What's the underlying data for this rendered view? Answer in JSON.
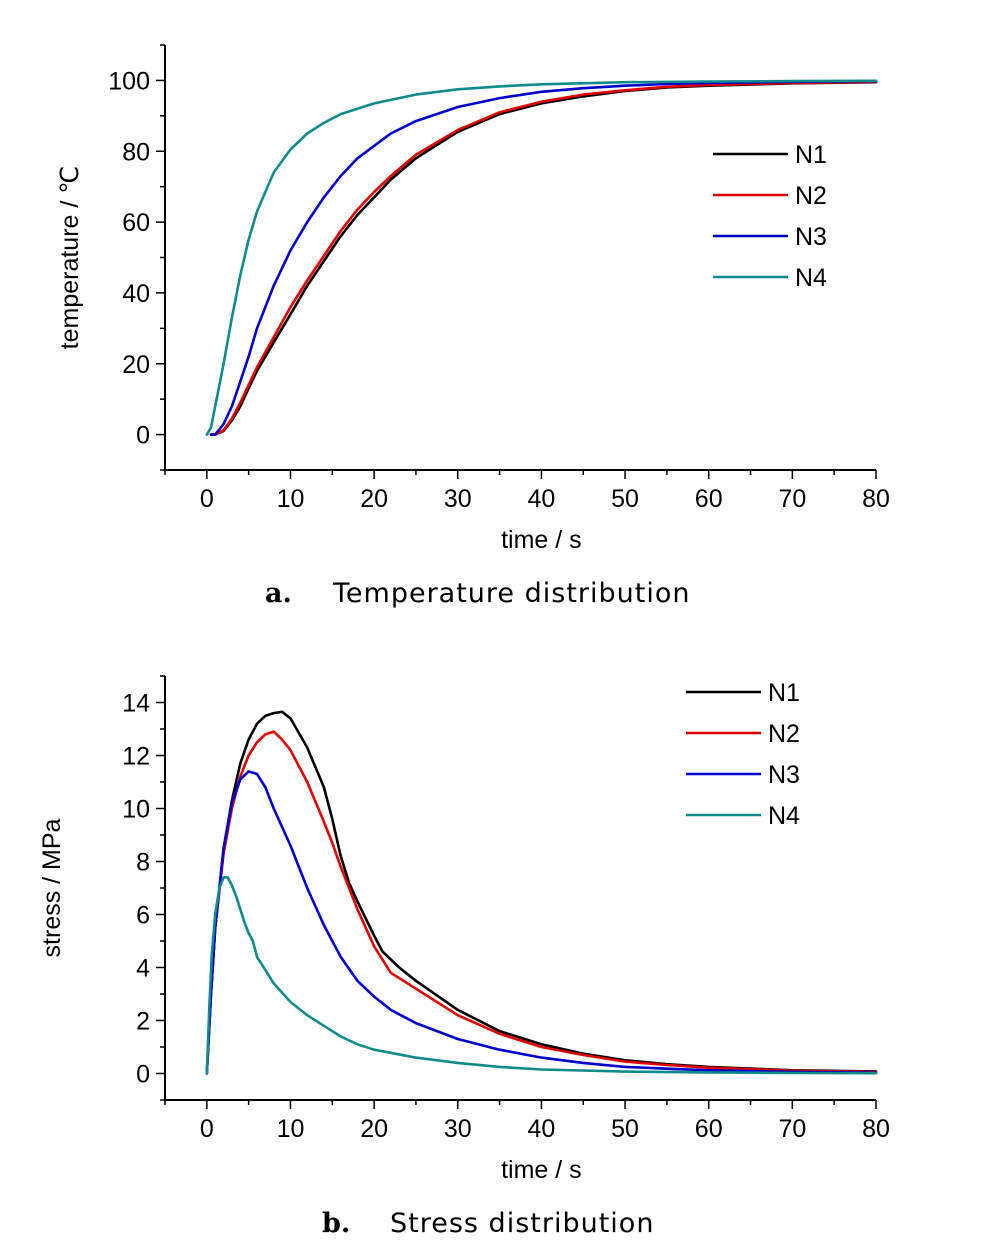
{
  "chart_data": [
    {
      "type": "line",
      "caption_letter": "a.",
      "caption_text": "Temperature distribution",
      "xlabel": "time / s",
      "ylabel": "temperature / ℃",
      "xlim": [
        -5,
        80
      ],
      "ylim": [
        -10,
        110
      ],
      "xticks": [
        0,
        10,
        20,
        30,
        40,
        50,
        60,
        70,
        80
      ],
      "yticks": [
        0,
        20,
        40,
        60,
        80,
        100
      ],
      "legend_position": "right",
      "series": [
        {
          "name": "N1",
          "color": "#000000",
          "x": [
            0.5,
            1,
            2,
            3,
            4,
            5,
            6,
            8,
            10,
            12,
            14,
            16,
            18,
            20,
            22,
            25,
            30,
            35,
            40,
            45,
            50,
            55,
            60,
            70,
            80
          ],
          "y": [
            0,
            0,
            1,
            4,
            8,
            13,
            18,
            26,
            34,
            42,
            49,
            56,
            62,
            67,
            72,
            78,
            85.5,
            90.5,
            93.5,
            95.5,
            97,
            98,
            98.5,
            99.2,
            99.5
          ]
        },
        {
          "name": "N2",
          "color": "#e00000",
          "x": [
            0.5,
            1,
            2,
            3,
            4,
            5,
            6,
            8,
            10,
            12,
            14,
            16,
            18,
            20,
            22,
            25,
            30,
            35,
            40,
            45,
            50,
            55,
            60,
            70,
            80
          ],
          "y": [
            0,
            0,
            1.2,
            4.5,
            9,
            14,
            19,
            27.5,
            36,
            43.5,
            50.5,
            57.5,
            63.5,
            68.5,
            73,
            79,
            86,
            91,
            94,
            96,
            97.2,
            98.2,
            98.7,
            99.3,
            99.6
          ]
        },
        {
          "name": "N3",
          "color": "#0000cc",
          "x": [
            0.5,
            1,
            2,
            3,
            4,
            5,
            6,
            8,
            10,
            12,
            14,
            16,
            18,
            20,
            22,
            25,
            30,
            35,
            40,
            45,
            50,
            55,
            60,
            70,
            80
          ],
          "y": [
            0,
            0,
            3,
            8,
            15,
            22,
            30,
            42,
            52,
            60,
            67,
            73,
            78,
            81.5,
            85,
            88.5,
            92.5,
            95,
            96.8,
            97.8,
            98.5,
            99,
            99.3,
            99.6,
            99.8
          ]
        },
        {
          "name": "N4",
          "color": "#108b8b",
          "x": [
            0,
            0.5,
            1,
            2,
            3,
            4,
            5,
            6,
            8,
            10,
            12,
            14,
            16,
            18,
            20,
            25,
            30,
            35,
            40,
            50,
            60,
            70,
            80
          ],
          "y": [
            0,
            2,
            8,
            20,
            33,
            45,
            55,
            63,
            74,
            80.5,
            85,
            88,
            90.5,
            92,
            93.5,
            96,
            97.5,
            98.3,
            98.9,
            99.5,
            99.7,
            99.8,
            99.9
          ]
        }
      ]
    },
    {
      "type": "line",
      "caption_letter": "b.",
      "caption_text": "Stress distribution",
      "xlabel": "time / s",
      "ylabel": "stress / MPa",
      "xlim": [
        -5,
        80
      ],
      "ylim": [
        -1,
        15
      ],
      "xticks": [
        0,
        10,
        20,
        30,
        40,
        50,
        60,
        70,
        80
      ],
      "yticks": [
        0,
        2,
        4,
        6,
        8,
        10,
        12,
        14
      ],
      "legend_position": "top-right",
      "series": [
        {
          "name": "N1",
          "color": "#000000",
          "x": [
            0,
            0.5,
            1,
            2,
            3,
            4,
            5,
            6,
            7,
            8,
            9,
            10,
            12,
            14,
            15,
            16,
            17,
            18,
            20,
            21,
            23,
            25,
            30,
            35,
            40,
            45,
            50,
            55,
            60,
            70,
            80
          ],
          "y": [
            0,
            3,
            5.5,
            8.5,
            10.3,
            11.7,
            12.6,
            13.2,
            13.5,
            13.6,
            13.65,
            13.4,
            12.3,
            10.8,
            9.6,
            8.2,
            7.2,
            6.5,
            5.2,
            4.6,
            4.0,
            3.5,
            2.4,
            1.6,
            1.1,
            0.75,
            0.5,
            0.35,
            0.25,
            0.12,
            0.08
          ]
        },
        {
          "name": "N2",
          "color": "#e00000",
          "x": [
            0,
            0.5,
            1,
            2,
            3,
            4,
            5,
            6,
            7,
            8,
            9,
            10,
            12,
            14,
            15,
            16,
            18,
            20,
            22,
            25,
            30,
            35,
            40,
            45,
            50,
            55,
            60,
            70,
            80
          ],
          "y": [
            0,
            3,
            5.5,
            8.3,
            10,
            11.2,
            12,
            12.5,
            12.8,
            12.9,
            12.6,
            12.2,
            11,
            9.5,
            8.7,
            7.8,
            6.2,
            4.8,
            3.8,
            3.2,
            2.2,
            1.5,
            1.0,
            0.7,
            0.45,
            0.32,
            0.22,
            0.1,
            0.06
          ]
        },
        {
          "name": "N3",
          "color": "#0000cc",
          "x": [
            0,
            0.5,
            1,
            2,
            3,
            4,
            5,
            6,
            7,
            8,
            9,
            10,
            12,
            14,
            16,
            18,
            20,
            22,
            25,
            30,
            35,
            40,
            45,
            50,
            55,
            60,
            70,
            80
          ],
          "y": [
            0,
            3,
            5.5,
            8.5,
            10.2,
            11.1,
            11.4,
            11.3,
            10.8,
            10.0,
            9.3,
            8.6,
            7.0,
            5.6,
            4.4,
            3.5,
            2.9,
            2.4,
            1.9,
            1.3,
            0.9,
            0.6,
            0.4,
            0.25,
            0.18,
            0.12,
            0.06,
            0.03
          ]
        },
        {
          "name": "N4",
          "color": "#108b8b",
          "x": [
            0,
            0.3,
            0.6,
            1,
            1.5,
            2,
            2.5,
            3,
            3.5,
            4,
            4.5,
            5,
            5.5,
            6,
            7,
            8,
            10,
            12,
            14,
            16,
            18,
            20,
            25,
            30,
            35,
            40,
            50,
            60,
            70,
            80
          ],
          "y": [
            0,
            2.5,
            4.5,
            6,
            7.0,
            7.4,
            7.4,
            7.1,
            6.7,
            6.2,
            5.7,
            5.3,
            5.0,
            4.4,
            3.9,
            3.4,
            2.7,
            2.2,
            1.8,
            1.4,
            1.1,
            0.9,
            0.6,
            0.4,
            0.25,
            0.15,
            0.07,
            0.04,
            0.02,
            0.01
          ]
        }
      ]
    }
  ]
}
